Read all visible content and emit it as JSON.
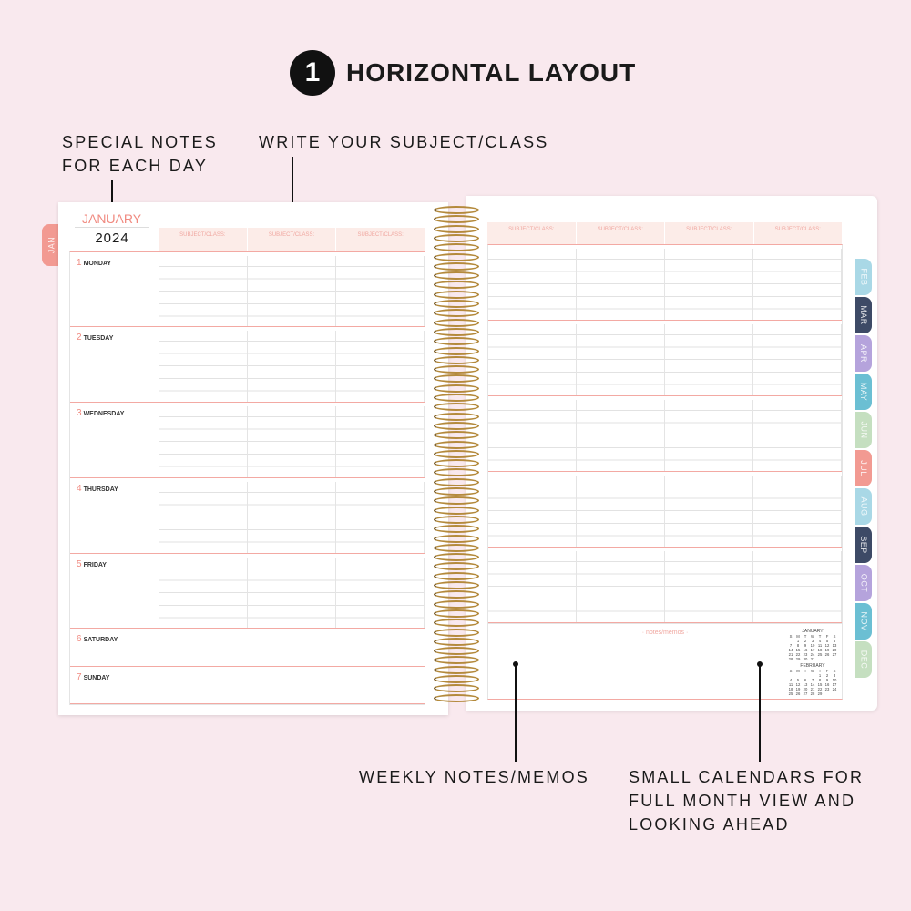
{
  "header": {
    "step_number": "1",
    "title": "HORIZONTAL LAYOUT"
  },
  "callouts": {
    "special_notes": "SPECIAL NOTES FOR EACH DAY",
    "subject": "WRITE YOUR SUBJECT/CLASS",
    "weekly_notes": "WEEKLY NOTES/MEMOS",
    "small_calendars": "SMALL CALENDARS FOR FULL MONTH VIEW AND LOOKING AHEAD"
  },
  "left_page": {
    "month": "JANUARY",
    "year": "2024",
    "tab": "JAN",
    "subject_label": "SUBJECT/CLASS:",
    "days": [
      {
        "n": "1",
        "name": "MONDAY"
      },
      {
        "n": "2",
        "name": "TUESDAY"
      },
      {
        "n": "3",
        "name": "WEDNESDAY"
      },
      {
        "n": "4",
        "name": "THURSDAY"
      },
      {
        "n": "5",
        "name": "FRIDAY"
      },
      {
        "n": "6",
        "name": "SATURDAY"
      },
      {
        "n": "7",
        "name": "SUNDAY"
      }
    ]
  },
  "right_page": {
    "subject_label": "SUBJECT/CLASS:",
    "notes_label": "· notes/memos ·",
    "mini_calendars": [
      {
        "month": "JANUARY",
        "weekdays": [
          "S",
          "M",
          "T",
          "W",
          "T",
          "F",
          "S"
        ],
        "days": [
          "",
          "1",
          "2",
          "3",
          "4",
          "5",
          "6",
          "7",
          "8",
          "9",
          "10",
          "11",
          "12",
          "13",
          "14",
          "15",
          "16",
          "17",
          "18",
          "19",
          "20",
          "21",
          "22",
          "23",
          "24",
          "25",
          "26",
          "27",
          "28",
          "29",
          "30",
          "31"
        ]
      },
      {
        "month": "FEBRUARY",
        "weekdays": [
          "S",
          "M",
          "T",
          "W",
          "T",
          "F",
          "S"
        ],
        "days": [
          "",
          "",
          "",
          "",
          "1",
          "2",
          "3",
          "4",
          "5",
          "6",
          "7",
          "8",
          "9",
          "10",
          "11",
          "12",
          "13",
          "14",
          "15",
          "16",
          "17",
          "18",
          "19",
          "20",
          "21",
          "22",
          "23",
          "24",
          "25",
          "26",
          "27",
          "28",
          "29"
        ]
      }
    ]
  },
  "tabs": [
    {
      "label": "FEB",
      "color": "#a9d8e6"
    },
    {
      "label": "MAR",
      "color": "#3d4a66"
    },
    {
      "label": "APR",
      "color": "#b5a3dc"
    },
    {
      "label": "MAY",
      "color": "#6bbfd3"
    },
    {
      "label": "JUN",
      "color": "#c5dfc0"
    },
    {
      "label": "JUL",
      "color": "#f29a92"
    },
    {
      "label": "AUG",
      "color": "#a9d8e6"
    },
    {
      "label": "SEP",
      "color": "#3d4a66"
    },
    {
      "label": "OCT",
      "color": "#b5a3dc"
    },
    {
      "label": "NOV",
      "color": "#6bbfd3"
    },
    {
      "label": "DEC",
      "color": "#c5dfc0"
    }
  ],
  "colors": {
    "background": "#f9e9ee",
    "accent": "#f08a80",
    "jan_tab": "#f29a92"
  }
}
